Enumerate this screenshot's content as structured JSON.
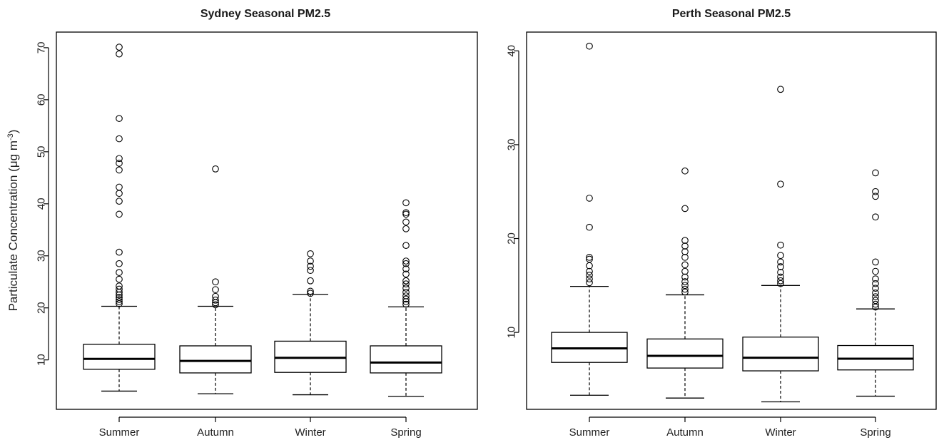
{
  "chart_data": [
    {
      "type": "box",
      "title": "Sydney Seasonal PM2.5",
      "ylabel": "Particulate Concentration (μg m",
      "ylabel_sup": "-3",
      "ylabel_close": ")",
      "ylim": [
        0.5,
        73
      ],
      "yticks": [
        10,
        20,
        30,
        40,
        50,
        60,
        70
      ],
      "categories": [
        "Summer",
        "Autumn",
        "Winter",
        "Spring"
      ],
      "boxes": [
        {
          "whisker_low": 4.0,
          "q1": 8.2,
          "median": 10.2,
          "q3": 13.0,
          "whisker_high": 20.3,
          "outliers": [
            20.8,
            21.2,
            21.6,
            22.0,
            22.5,
            23.0,
            23.6,
            24.2,
            25.5,
            26.8,
            28.5,
            30.7,
            38.0,
            40.5,
            42.0,
            43.2,
            46.5,
            47.8,
            48.7,
            52.5,
            56.4,
            68.8,
            70.1
          ]
        },
        {
          "whisker_low": 3.5,
          "q1": 7.5,
          "median": 9.8,
          "q3": 12.7,
          "whisker_high": 20.3,
          "outliers": [
            20.6,
            21.0,
            21.5,
            22.2,
            23.5,
            25.0,
            46.7
          ]
        },
        {
          "whisker_low": 3.3,
          "q1": 7.6,
          "median": 10.4,
          "q3": 13.6,
          "whisker_high": 22.6,
          "outliers": [
            22.8,
            23.2,
            25.2,
            27.2,
            28.0,
            29.0,
            30.4
          ]
        },
        {
          "whisker_low": 3.0,
          "q1": 7.5,
          "median": 9.5,
          "q3": 12.7,
          "whisker_high": 20.2,
          "outliers": [
            20.7,
            21.2,
            21.7,
            22.3,
            23.0,
            23.8,
            24.6,
            25.2,
            26.5,
            27.5,
            28.5,
            29.0,
            32.0,
            35.2,
            36.5,
            38.0,
            38.3,
            40.2
          ]
        }
      ]
    },
    {
      "type": "box",
      "title": "Perth Seasonal PM2.5",
      "ylim": [
        1.8,
        42
      ],
      "yticks": [
        10,
        20,
        30,
        40
      ],
      "categories": [
        "Summer",
        "Autumn",
        "Winter",
        "Spring"
      ],
      "boxes": [
        {
          "whisker_low": 3.3,
          "q1": 6.8,
          "median": 8.3,
          "q3": 10.0,
          "whisker_high": 14.9,
          "outliers": [
            15.3,
            15.7,
            16.1,
            16.5,
            17.1,
            17.8,
            18.0,
            21.2,
            24.3,
            40.5
          ]
        },
        {
          "whisker_low": 3.0,
          "q1": 6.2,
          "median": 7.5,
          "q3": 9.3,
          "whisker_high": 14.0,
          "outliers": [
            14.3,
            14.6,
            15.0,
            15.4,
            15.9,
            16.5,
            17.2,
            18.0,
            18.6,
            19.2,
            19.8,
            23.2,
            27.2
          ]
        },
        {
          "whisker_low": 2.6,
          "q1": 5.9,
          "median": 7.3,
          "q3": 9.5,
          "whisker_high": 15.0,
          "outliers": [
            15.2,
            15.5,
            15.9,
            16.4,
            17.0,
            17.5,
            18.2,
            19.3,
            25.8,
            35.9
          ]
        },
        {
          "whisker_low": 3.2,
          "q1": 6.0,
          "median": 7.2,
          "q3": 8.6,
          "whisker_high": 12.5,
          "outliers": [
            12.7,
            13.0,
            13.4,
            13.8,
            14.2,
            14.7,
            15.2,
            15.7,
            16.5,
            17.5,
            22.3,
            24.5,
            25.0,
            27.0
          ]
        }
      ]
    }
  ]
}
